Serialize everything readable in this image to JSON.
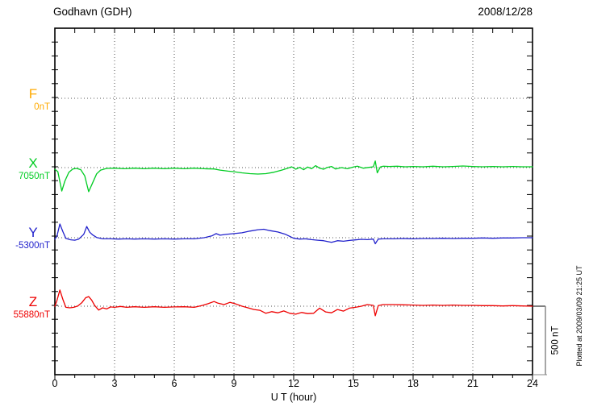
{
  "header": {
    "title": "Godhavn (GDH)",
    "date": "2008/12/28"
  },
  "side_note": "Plotted at 2009/03/09 21:25 UT",
  "chart_data": {
    "type": "line",
    "station": "Godhavn (GDH)",
    "date": "2008/12/28",
    "xlabel": "U T (hour)",
    "x_range_hours": [
      0,
      24
    ],
    "x_ticks": [
      0,
      3,
      6,
      9,
      12,
      15,
      18,
      21,
      24
    ],
    "grid": "dotted vertical lines every 3 hours; dotted horizontal line at each channel baseline",
    "legend_position": "left margin, one colored letter per channel",
    "scale_bar": {
      "label": "500 nT",
      "nT": 500
    },
    "points_format": "[hour_UT, delta_nT_from_baseline]",
    "series": [
      {
        "name": "F",
        "baseline_label": "0nT",
        "baseline_nT": 0,
        "color": "#FFAA00",
        "points": []
      },
      {
        "name": "X",
        "baseline_label": "7050nT",
        "baseline_nT": 7050,
        "color": "#00CC22",
        "points": [
          [
            0,
            -12
          ],
          [
            0.15,
            -30
          ],
          [
            0.35,
            -171
          ],
          [
            0.5,
            -100
          ],
          [
            0.7,
            -35
          ],
          [
            0.9,
            -10
          ],
          [
            1.1,
            -6
          ],
          [
            1.3,
            -15
          ],
          [
            1.5,
            -60
          ],
          [
            1.7,
            -176
          ],
          [
            1.9,
            -110
          ],
          [
            2.1,
            -45
          ],
          [
            2.3,
            -18
          ],
          [
            2.6,
            -6
          ],
          [
            3,
            -4
          ],
          [
            3.5,
            -8
          ],
          [
            4,
            -4
          ],
          [
            4.5,
            -8
          ],
          [
            5,
            -4
          ],
          [
            5.5,
            -8
          ],
          [
            6,
            -4
          ],
          [
            6.5,
            -8
          ],
          [
            7,
            -4
          ],
          [
            7.5,
            -8
          ],
          [
            8,
            -10
          ],
          [
            8.3,
            -18
          ],
          [
            8.7,
            -26
          ],
          [
            9,
            -30
          ],
          [
            9.4,
            -38
          ],
          [
            9.8,
            -44
          ],
          [
            10.2,
            -47
          ],
          [
            10.6,
            -44
          ],
          [
            11,
            -34
          ],
          [
            11.4,
            -18
          ],
          [
            11.7,
            -4
          ],
          [
            11.9,
            6
          ],
          [
            12.1,
            -12
          ],
          [
            12.3,
            2
          ],
          [
            12.5,
            -15
          ],
          [
            12.7,
            4
          ],
          [
            12.9,
            -8
          ],
          [
            13.1,
            14
          ],
          [
            13.3,
            -4
          ],
          [
            13.5,
            -12
          ],
          [
            13.7,
            2
          ],
          [
            13.9,
            8
          ],
          [
            14.1,
            -10
          ],
          [
            14.4,
            0
          ],
          [
            14.7,
            -8
          ],
          [
            15,
            4
          ],
          [
            15.2,
            10
          ],
          [
            15.5,
            -4
          ],
          [
            15.8,
            2
          ],
          [
            16,
            6
          ],
          [
            16.1,
            48
          ],
          [
            16.2,
            -38
          ],
          [
            16.35,
            4
          ],
          [
            16.5,
            10
          ],
          [
            16.8,
            8
          ],
          [
            17.2,
            10
          ],
          [
            17.6,
            6
          ],
          [
            18,
            8
          ],
          [
            18.5,
            6
          ],
          [
            19,
            10
          ],
          [
            19.5,
            6
          ],
          [
            20,
            8
          ],
          [
            20.5,
            12
          ],
          [
            21,
            8
          ],
          [
            21.5,
            6
          ],
          [
            22,
            8
          ],
          [
            22.5,
            6
          ],
          [
            23,
            8
          ],
          [
            23.5,
            6
          ],
          [
            24,
            6
          ]
        ]
      },
      {
        "name": "Y",
        "baseline_label": "-5300nT",
        "baseline_nT": -5300,
        "color": "#2222CC",
        "points": [
          [
            0,
            -10
          ],
          [
            0.1,
            10
          ],
          [
            0.25,
            100
          ],
          [
            0.4,
            45
          ],
          [
            0.55,
            -5
          ],
          [
            0.8,
            -15
          ],
          [
            1,
            -18
          ],
          [
            1.2,
            -10
          ],
          [
            1.45,
            25
          ],
          [
            1.6,
            82
          ],
          [
            1.75,
            40
          ],
          [
            1.9,
            20
          ],
          [
            2.1,
            2
          ],
          [
            2.4,
            -8
          ],
          [
            2.8,
            -8
          ],
          [
            3.2,
            -10
          ],
          [
            3.6,
            -8
          ],
          [
            4,
            -10
          ],
          [
            4.5,
            -8
          ],
          [
            5,
            -10
          ],
          [
            5.5,
            -8
          ],
          [
            6,
            -10
          ],
          [
            6.5,
            -8
          ],
          [
            7,
            -8
          ],
          [
            7.5,
            0
          ],
          [
            7.9,
            14
          ],
          [
            8.1,
            30
          ],
          [
            8.3,
            18
          ],
          [
            8.6,
            24
          ],
          [
            9,
            30
          ],
          [
            9.4,
            36
          ],
          [
            9.8,
            48
          ],
          [
            10.2,
            58
          ],
          [
            10.5,
            62
          ],
          [
            10.8,
            52
          ],
          [
            11.2,
            42
          ],
          [
            11.6,
            24
          ],
          [
            12,
            -4
          ],
          [
            12.3,
            -10
          ],
          [
            12.6,
            -8
          ],
          [
            12.9,
            -14
          ],
          [
            13.2,
            -18
          ],
          [
            13.5,
            -22
          ],
          [
            13.9,
            -34
          ],
          [
            14.2,
            -22
          ],
          [
            14.5,
            -26
          ],
          [
            14.8,
            -20
          ],
          [
            15.1,
            -16
          ],
          [
            15.4,
            -12
          ],
          [
            15.7,
            -14
          ],
          [
            16,
            -10
          ],
          [
            16.1,
            -44
          ],
          [
            16.25,
            -10
          ],
          [
            16.5,
            -8
          ],
          [
            17,
            -8
          ],
          [
            17.5,
            -6
          ],
          [
            18,
            -8
          ],
          [
            18.5,
            -6
          ],
          [
            19,
            -6
          ],
          [
            19.5,
            -4
          ],
          [
            20,
            -6
          ],
          [
            20.5,
            -4
          ],
          [
            21,
            -4
          ],
          [
            21.5,
            -2
          ],
          [
            22,
            -4
          ],
          [
            22.5,
            -2
          ],
          [
            23,
            -2
          ],
          [
            23.5,
            0
          ],
          [
            24,
            0
          ]
        ]
      },
      {
        "name": "Z",
        "baseline_label": "55880nT",
        "baseline_nT": 55880,
        "color": "#EE0000",
        "points": [
          [
            0,
            0
          ],
          [
            0.1,
            40
          ],
          [
            0.25,
            118
          ],
          [
            0.4,
            50
          ],
          [
            0.55,
            -8
          ],
          [
            0.75,
            -12
          ],
          [
            0.95,
            -8
          ],
          [
            1.15,
            2
          ],
          [
            1.35,
            25
          ],
          [
            1.55,
            62
          ],
          [
            1.7,
            70
          ],
          [
            1.85,
            45
          ],
          [
            2,
            5
          ],
          [
            2.2,
            -28
          ],
          [
            2.4,
            -12
          ],
          [
            2.6,
            -20
          ],
          [
            2.8,
            -5
          ],
          [
            3,
            -8
          ],
          [
            3.3,
            -2
          ],
          [
            3.6,
            -8
          ],
          [
            4,
            -4
          ],
          [
            4.5,
            -8
          ],
          [
            5,
            -4
          ],
          [
            5.5,
            -8
          ],
          [
            6,
            -5
          ],
          [
            6.5,
            -4
          ],
          [
            7,
            -8
          ],
          [
            7.4,
            5
          ],
          [
            7.7,
            18
          ],
          [
            8,
            34
          ],
          [
            8.2,
            22
          ],
          [
            8.5,
            12
          ],
          [
            8.8,
            28
          ],
          [
            9.1,
            16
          ],
          [
            9.4,
            0
          ],
          [
            9.7,
            -12
          ],
          [
            10,
            -24
          ],
          [
            10.3,
            -30
          ],
          [
            10.6,
            -52
          ],
          [
            10.9,
            -40
          ],
          [
            11.2,
            -48
          ],
          [
            11.5,
            -35
          ],
          [
            11.8,
            -52
          ],
          [
            12.1,
            -58
          ],
          [
            12.4,
            -46
          ],
          [
            12.7,
            -54
          ],
          [
            13,
            -52
          ],
          [
            13.3,
            -14
          ],
          [
            13.6,
            -42
          ],
          [
            13.9,
            -48
          ],
          [
            14.2,
            -24
          ],
          [
            14.5,
            -36
          ],
          [
            14.8,
            -14
          ],
          [
            15.1,
            -8
          ],
          [
            15.4,
            0
          ],
          [
            15.7,
            12
          ],
          [
            16,
            6
          ],
          [
            16.1,
            -70
          ],
          [
            16.25,
            4
          ],
          [
            16.5,
            12
          ],
          [
            17,
            12
          ],
          [
            17.5,
            10
          ],
          [
            18,
            8
          ],
          [
            18.5,
            6
          ],
          [
            19,
            8
          ],
          [
            19.5,
            6
          ],
          [
            20,
            8
          ],
          [
            20.5,
            6
          ],
          [
            21,
            6
          ],
          [
            21.5,
            4
          ],
          [
            22,
            4
          ],
          [
            22.5,
            2
          ],
          [
            23,
            4
          ],
          [
            23.5,
            2
          ],
          [
            24,
            0
          ]
        ]
      }
    ]
  }
}
